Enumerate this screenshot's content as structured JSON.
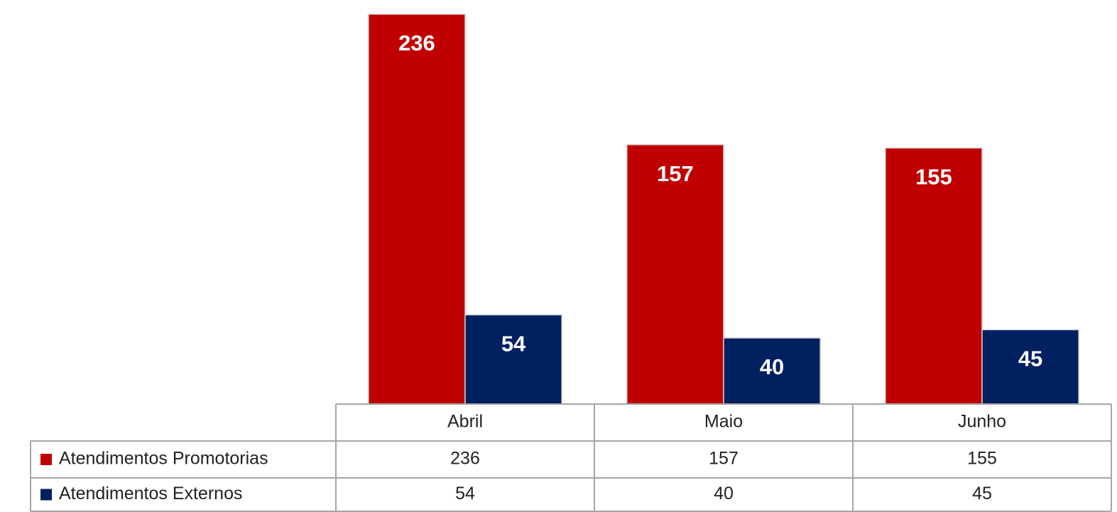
{
  "chart_data": {
    "type": "bar",
    "categories": [
      "Abril",
      "Maio",
      "Junho"
    ],
    "series": [
      {
        "name": "Atendimentos Promotorias",
        "color": "#c00000",
        "values": [
          236,
          157,
          155
        ]
      },
      {
        "name": "Atendimentos Externos",
        "color": "#002060",
        "values": [
          54,
          40,
          45
        ]
      }
    ]
  }
}
